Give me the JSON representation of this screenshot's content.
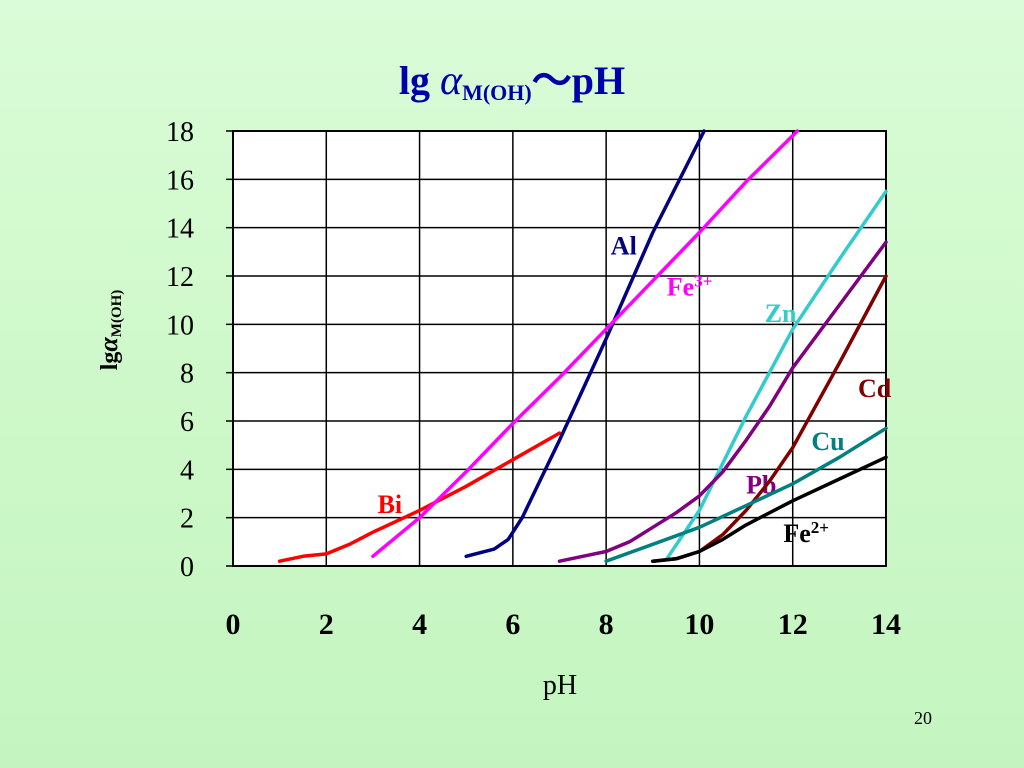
{
  "title": {
    "prefix": "lg ",
    "alpha": "α",
    "sub": "M(OH)",
    "suffix": "～pH"
  },
  "ylabel": {
    "prefix": "lg",
    "alpha": "α",
    "sub": "M(OH)"
  },
  "page_number": "20",
  "chart_data": {
    "type": "line",
    "title": "lg αM(OH)～pH",
    "xlabel": "pH",
    "ylabel": "lgαM(OH)",
    "xlim": [
      0,
      14
    ],
    "ylim": [
      0,
      18
    ],
    "x_ticks": [
      0,
      2,
      4,
      6,
      8,
      10,
      12,
      14
    ],
    "y_ticks": [
      0,
      2,
      4,
      6,
      8,
      10,
      12,
      14,
      16,
      18
    ],
    "grid": true,
    "series": [
      {
        "name": "Bi",
        "label": "Bi",
        "color": "#ff0000",
        "points": [
          [
            1,
            0.2
          ],
          [
            1.5,
            0.4
          ],
          [
            2,
            0.5
          ],
          [
            2.5,
            0.9
          ],
          [
            3,
            1.4
          ],
          [
            4,
            2.3
          ],
          [
            5,
            3.3
          ],
          [
            6,
            4.4
          ],
          [
            7,
            5.5
          ]
        ]
      },
      {
        "name": "Al",
        "label": "Al",
        "color": "#000080",
        "points": [
          [
            5,
            0.4
          ],
          [
            5.6,
            0.7
          ],
          [
            5.9,
            1.1
          ],
          [
            6.2,
            2.0
          ],
          [
            6.6,
            3.6
          ],
          [
            7,
            5.2
          ],
          [
            8,
            9.4
          ],
          [
            9,
            13.8
          ],
          [
            10.1,
            18
          ]
        ]
      },
      {
        "name": "Fe3+",
        "label_base": "Fe",
        "label_sup": "3+",
        "color": "#ff00ff",
        "points": [
          [
            3,
            0.4
          ],
          [
            4,
            2.0
          ],
          [
            5,
            3.9
          ],
          [
            6,
            5.9
          ],
          [
            7,
            7.8
          ],
          [
            8,
            9.8
          ],
          [
            9,
            11.8
          ],
          [
            10,
            13.8
          ],
          [
            11,
            15.9
          ],
          [
            12.1,
            18
          ]
        ]
      },
      {
        "name": "Zn",
        "label": "Zn",
        "color": "#33cccc",
        "points": [
          [
            9.3,
            0.3
          ],
          [
            10,
            2.3
          ],
          [
            11,
            6.2
          ],
          [
            12,
            9.8
          ],
          [
            13,
            12.7
          ],
          [
            14,
            15.5
          ]
        ]
      },
      {
        "name": "Pb",
        "label": "Pb",
        "color": "#800080",
        "points": [
          [
            7,
            0.2
          ],
          [
            7.5,
            0.4
          ],
          [
            8,
            0.6
          ],
          [
            8.5,
            1.0
          ],
          [
            9,
            1.6
          ],
          [
            9.5,
            2.2
          ],
          [
            10,
            2.9
          ],
          [
            10.5,
            3.9
          ],
          [
            11,
            5.2
          ],
          [
            11.5,
            6.6
          ],
          [
            12,
            8.2
          ],
          [
            13,
            10.8
          ],
          [
            14,
            13.4
          ]
        ]
      },
      {
        "name": "Cd",
        "label": "Cd",
        "color": "#800000",
        "points": [
          [
            9,
            0.2
          ],
          [
            9.5,
            0.3
          ],
          [
            10,
            0.6
          ],
          [
            10.5,
            1.3
          ],
          [
            11,
            2.3
          ],
          [
            11.5,
            3.5
          ],
          [
            12,
            4.9
          ],
          [
            13,
            8.4
          ],
          [
            14,
            12.0
          ]
        ]
      },
      {
        "name": "Cu",
        "label": "Cu",
        "color": "#008080",
        "points": [
          [
            8,
            0.2
          ],
          [
            9,
            0.9
          ],
          [
            10,
            1.6
          ],
          [
            11,
            2.5
          ],
          [
            12,
            3.4
          ],
          [
            13,
            4.5
          ],
          [
            14,
            5.7
          ]
        ]
      },
      {
        "name": "Fe2+",
        "label_base": "Fe",
        "label_sup": "2+",
        "color": "#000000",
        "points": [
          [
            9,
            0.2
          ],
          [
            9.5,
            0.3
          ],
          [
            10,
            0.6
          ],
          [
            10.5,
            1.1
          ],
          [
            11,
            1.7
          ],
          [
            12,
            2.7
          ],
          [
            13,
            3.6
          ],
          [
            14,
            4.5
          ]
        ]
      }
    ]
  }
}
